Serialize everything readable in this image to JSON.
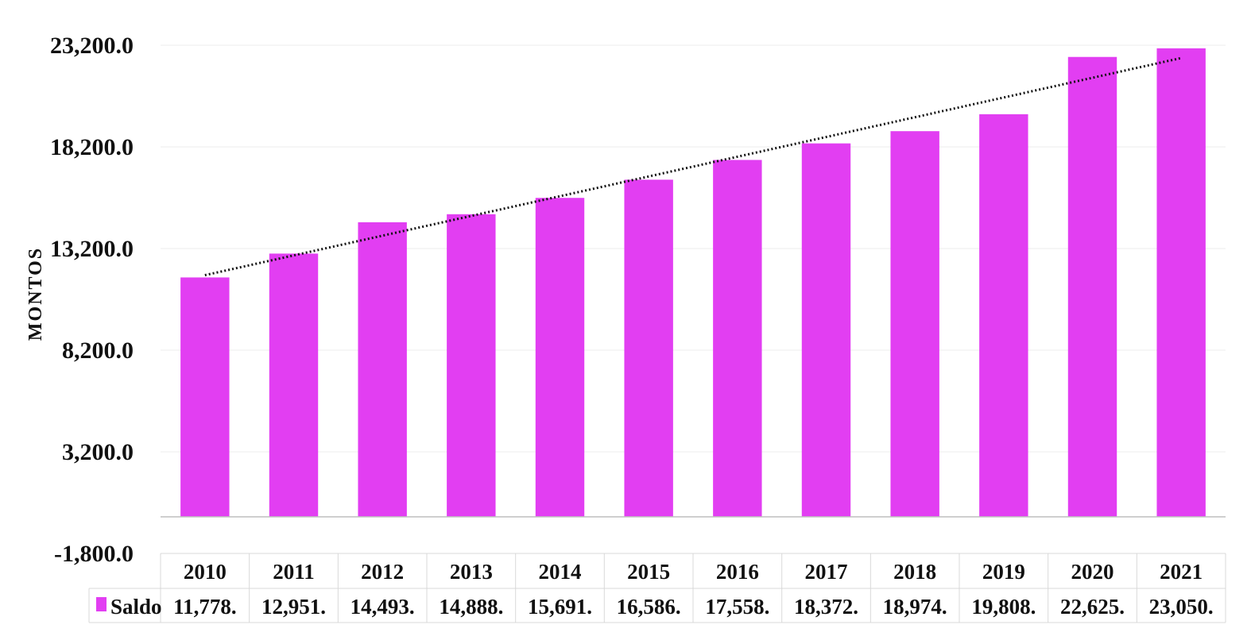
{
  "chart_data": {
    "type": "bar",
    "title": "",
    "xlabel": "",
    "ylabel": "MONTOS",
    "ylim": [
      -1800,
      23200
    ],
    "yticks": [
      -1800,
      3200,
      8200,
      13200,
      18200,
      23200
    ],
    "ytick_labels": [
      "-1,800.0",
      "3,200.0",
      "8,200.0",
      "13,200.0",
      "18,200.0",
      "23,200.0"
    ],
    "categories": [
      "2010",
      "2011",
      "2012",
      "2013",
      "2014",
      "2015",
      "2016",
      "2017",
      "2018",
      "2019",
      "2020",
      "2021"
    ],
    "series": [
      {
        "name": "Saldo",
        "color": "#E23EF2",
        "values": [
          11778,
          12951,
          14493,
          14888,
          15691,
          16586,
          17558,
          18372,
          18974,
          19808,
          22625,
          23050
        ],
        "value_labels": [
          "11,778.",
          "12,951.",
          "14,493.",
          "14,888.",
          "15,691.",
          "16,586.",
          "17,558.",
          "18,372.",
          "18,974.",
          "19,808.",
          "22,625.",
          "23,050."
        ]
      }
    ],
    "trendline": {
      "type": "linear",
      "style": "dotted",
      "color": "#111111"
    },
    "gridlines": true,
    "data_table": true,
    "legend_position": "data-table-left"
  }
}
